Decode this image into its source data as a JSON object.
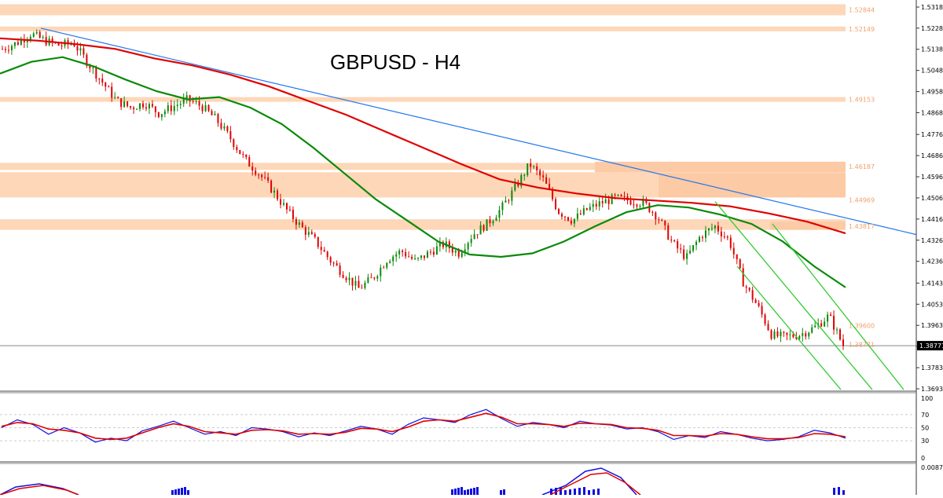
{
  "chart_data": [
    {
      "type": "candlestick",
      "title": "GBPUSD - H4",
      "ylim": [
        1.36935,
        1.53181
      ],
      "y_ticks": [
        "1.53181",
        "1.52285",
        "1.51385",
        "1.50485",
        "1.49585",
        "1.48685",
        "1.47760",
        "1.46860",
        "1.45960",
        "1.45060",
        "1.44160",
        "1.43260",
        "1.42360",
        "1.41435",
        "1.40535",
        "1.39635",
        "1.38735",
        "1.37835",
        "1.36935"
      ],
      "current_price": "1.38771",
      "price_path": [
        1.514,
        1.5165,
        1.5205,
        1.5175,
        1.5155,
        1.5165,
        1.508,
        1.5,
        1.492,
        1.489,
        1.491,
        1.4865,
        1.4895,
        1.4925,
        1.4895,
        1.484,
        1.476,
        1.467,
        1.461,
        1.4535,
        1.445,
        1.438,
        1.432,
        1.424,
        1.418,
        1.412,
        1.4165,
        1.4245,
        1.428,
        1.4235,
        1.4275,
        1.431,
        1.427,
        1.435,
        1.4395,
        1.446,
        1.455,
        1.465,
        1.458,
        1.445,
        1.441,
        1.4455,
        1.4485,
        1.4505,
        1.4495,
        1.4485,
        1.4425,
        1.4315,
        1.425,
        1.4345,
        1.4385,
        1.4325,
        1.4145,
        1.4045,
        1.392,
        1.3915,
        1.3925,
        1.3955,
        1.4005,
        1.3877
      ],
      "series": [
        {
          "name": "",
          "color": "#e00000",
          "values": [
            1.5185,
            1.5175,
            1.516,
            1.514,
            1.51,
            1.507,
            1.503,
            1.498,
            1.492,
            1.486,
            1.479,
            1.472,
            1.465,
            1.4585,
            1.455,
            1.4525,
            1.4505,
            1.4495,
            1.4485,
            1.447,
            1.444,
            1.4405,
            1.4355
          ]
        },
        {
          "name": "",
          "color": "#0a8a0a",
          "values": [
            1.5035,
            1.5085,
            1.5105,
            1.5065,
            1.501,
            1.496,
            1.4925,
            1.4935,
            1.489,
            1.482,
            1.472,
            1.461,
            1.45,
            1.441,
            1.432,
            1.4265,
            1.4255,
            1.427,
            1.432,
            1.4385,
            1.4445,
            1.4475,
            1.4465,
            1.4435,
            1.4395,
            1.432,
            1.4215,
            1.4125
          ]
        }
      ],
      "resistance_zones": [
        "1.52844",
        "1.52149",
        "1.49153",
        "1.46187",
        "1.44969",
        "1.43817",
        "1.39600",
        "1.38771"
      ],
      "annotations": [
        "descending trendline (blue)",
        "descending channel (green)"
      ]
    },
    {
      "type": "line",
      "title": "",
      "ylim": [
        0,
        100
      ],
      "y_ticks": [
        "100",
        "70",
        "50",
        "30",
        "0"
      ],
      "series": [
        {
          "name": "",
          "color": "#1010e0",
          "values": [
            50,
            62,
            55,
            40,
            50,
            42,
            28,
            34,
            30,
            45,
            52,
            60,
            50,
            40,
            44,
            38,
            50,
            48,
            44,
            36,
            42,
            38,
            45,
            52,
            48,
            40,
            55,
            65,
            62,
            58,
            70,
            78,
            64,
            52,
            58,
            55,
            50,
            60,
            56,
            54,
            48,
            50,
            44,
            32,
            38,
            35,
            44,
            40,
            34,
            30,
            32,
            36,
            46,
            42,
            34
          ]
        },
        {
          "name": "",
          "color": "#e00000",
          "values": [
            52,
            58,
            56,
            48,
            46,
            42,
            34,
            32,
            34,
            42,
            50,
            56,
            52,
            44,
            42,
            40,
            46,
            47,
            45,
            40,
            41,
            40,
            43,
            49,
            48,
            44,
            51,
            60,
            62,
            60,
            66,
            72,
            66,
            56,
            56,
            55,
            52,
            57,
            56,
            55,
            50,
            49,
            46,
            38,
            38,
            37,
            41,
            40,
            36,
            33,
            33,
            35,
            41,
            40,
            36
          ]
        }
      ]
    },
    {
      "type": "bar",
      "title": "",
      "y_ticks": [
        "0.00873"
      ]
    }
  ]
}
